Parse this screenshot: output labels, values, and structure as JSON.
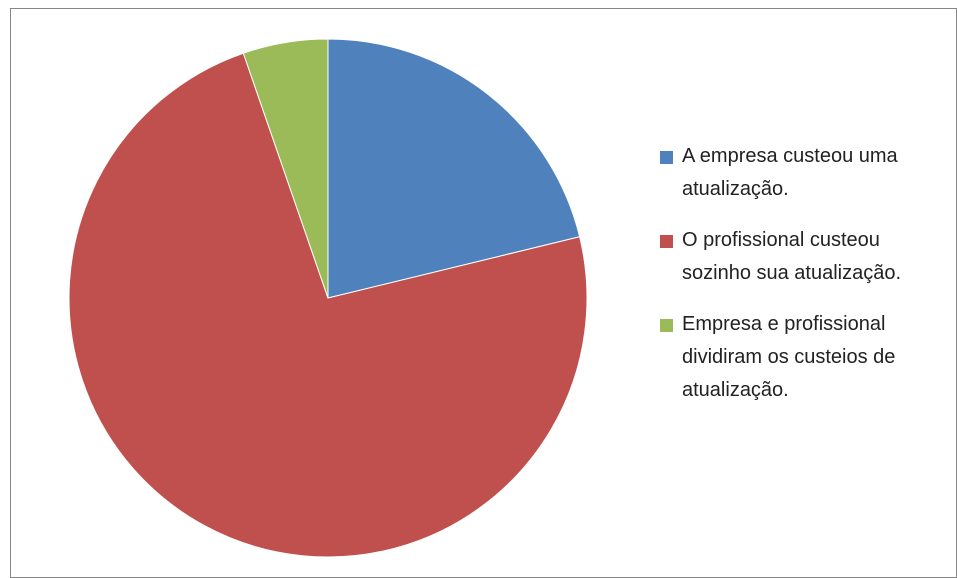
{
  "chart_data": {
    "type": "pie",
    "categories": [
      "A empresa custeou uma atualização.",
      "O profissional custeou sozinho sua atualização.",
      "Empresa e profissional dividiram os custeios de atualização."
    ],
    "values": [
      21.2,
      73.5,
      5.3
    ],
    "colors": [
      "#4f81bd",
      "#c0504d",
      "#9bbb59"
    ],
    "legend": "right"
  }
}
